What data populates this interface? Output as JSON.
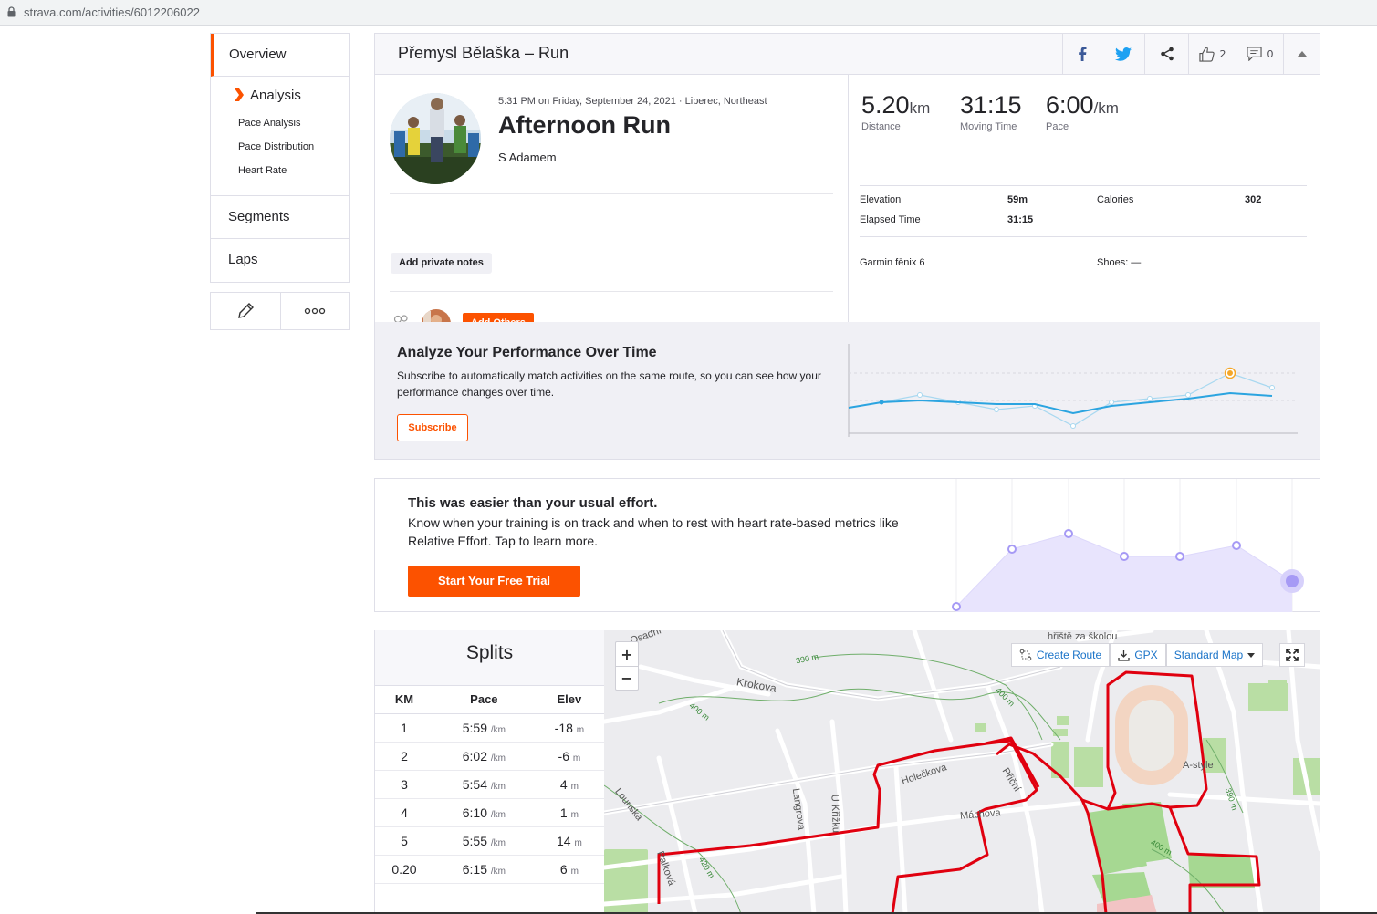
{
  "browser": {
    "url": "strava.com/activities/6012206022"
  },
  "sidebar": {
    "overview": "Overview",
    "analysis": "Analysis",
    "sub_items": [
      "Pace Analysis",
      "Pace Distribution",
      "Heart Rate"
    ],
    "segments": "Segments",
    "laps": "Laps"
  },
  "header": {
    "title": "Přemysl Bělaška – Run",
    "kudos_count": "2",
    "comment_count": "0"
  },
  "activity": {
    "meta": "5:31 PM on Friday, September 24, 2021 · Liberec, Northeast",
    "name": "Afternoon Run",
    "description": "S Adamem",
    "private_notes_label": "Add private notes",
    "add_others_label": "Add Others"
  },
  "stats": {
    "distance": {
      "value": "5.20",
      "unit": "km",
      "label": "Distance"
    },
    "moving_time": {
      "value": "31:15",
      "label": "Moving Time"
    },
    "pace": {
      "value": "6:00",
      "unit": "/km",
      "label": "Pace"
    },
    "elevation_label": "Elevation",
    "elevation_value": "59m",
    "calories_label": "Calories",
    "calories_value": "302",
    "elapsed_label": "Elapsed Time",
    "elapsed_value": "31:15",
    "device": "Garmin fēnix 6",
    "shoes": "Shoes: —"
  },
  "analyze": {
    "title": "Analyze Your Performance Over Time",
    "text": "Subscribe to automatically match activities on the same route, so you can see how your performance changes over time.",
    "button": "Subscribe"
  },
  "effort": {
    "title": "This was easier than your usual effort.",
    "text": "Know when your training is on track and when to rest with heart rate-based metrics like Relative Effort. Tap to learn more.",
    "button": "Start Your Free Trial"
  },
  "splits": {
    "title": "Splits",
    "columns": [
      "KM",
      "Pace",
      "Elev"
    ],
    "pace_unit": "/km",
    "elev_unit": "m",
    "rows": [
      {
        "km": "1",
        "pace": "5:59",
        "elev": "-18"
      },
      {
        "km": "2",
        "pace": "6:02",
        "elev": "-6"
      },
      {
        "km": "3",
        "pace": "5:54",
        "elev": "4"
      },
      {
        "km": "4",
        "pace": "6:10",
        "elev": "1"
      },
      {
        "km": "5",
        "pace": "5:55",
        "elev": "14"
      },
      {
        "km": "0.20",
        "pace": "6:15",
        "elev": "6"
      }
    ]
  },
  "map": {
    "create_route": "Create Route",
    "gpx": "GPX",
    "map_type": "Standard Map",
    "zoom_in": "+",
    "zoom_out": "−",
    "labels": {
      "krokova": "Krokova",
      "holeckova": "Holečkova",
      "machova": "Máchova",
      "prioni": "Přiční",
      "langrova": "Langrova",
      "u_krizku": "U Křížku",
      "lounska": "Lounská",
      "palkova": "Palková",
      "osadni": "Osadní",
      "hriste": "hřiště za školou",
      "a_style": "A-style",
      "c390": "390 m",
      "c400a": "400 m",
      "c400b": "400 m",
      "c400c": "400 m",
      "c390b": "390 m",
      "c420": "420 m"
    }
  },
  "colors": {
    "accent": "#fc5200",
    "map_route": "#e0000f",
    "chart_blue": "#2ba4e0",
    "effort_purple": "#a69af5"
  }
}
